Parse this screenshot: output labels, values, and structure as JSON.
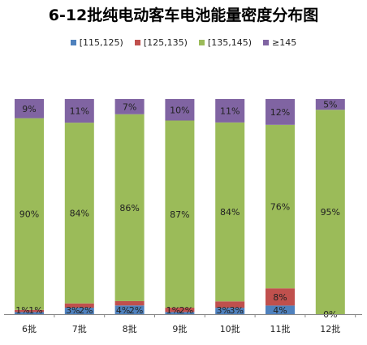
{
  "chart_data": {
    "type": "bar",
    "stacked": true,
    "percent": true,
    "title": "6-12批纯电动客车电池能量密度分布图",
    "xlabel": "",
    "ylabel": "",
    "ylim": [
      0,
      100
    ],
    "grid": false,
    "legend_position": "top",
    "categories": [
      "6批",
      "7批",
      "8批",
      "9批",
      "10批",
      "11批",
      "12批"
    ],
    "series": [
      {
        "name": "[115,125)",
        "color": "#4F81BD",
        "values": [
          1,
          3,
          4,
          1,
          3,
          4,
          0
        ]
      },
      {
        "name": "[125,135)",
        "color": "#C0504D",
        "values": [
          1,
          2,
          2,
          2,
          3,
          8,
          0
        ]
      },
      {
        "name": "[135,145)",
        "color": "#9BBB59",
        "values": [
          90,
          84,
          86,
          87,
          84,
          76,
          95
        ]
      },
      {
        "name": "≥145",
        "color": "#8064A2",
        "values": [
          9,
          11,
          7,
          10,
          11,
          12,
          5
        ]
      }
    ],
    "data_labels": [
      [
        "1%",
        "1%",
        "90%",
        "9%"
      ],
      [
        "3%",
        "2%",
        "84%",
        "11%"
      ],
      [
        "4%",
        "2%",
        "86%",
        "7%"
      ],
      [
        "1%",
        "2%",
        "87%",
        "10%"
      ],
      [
        "3%",
        "3%",
        "84%",
        "11%"
      ],
      [
        "4%",
        "8%",
        "76%",
        "12%"
      ],
      [
        "0%",
        "",
        "95%",
        "5%"
      ]
    ]
  }
}
